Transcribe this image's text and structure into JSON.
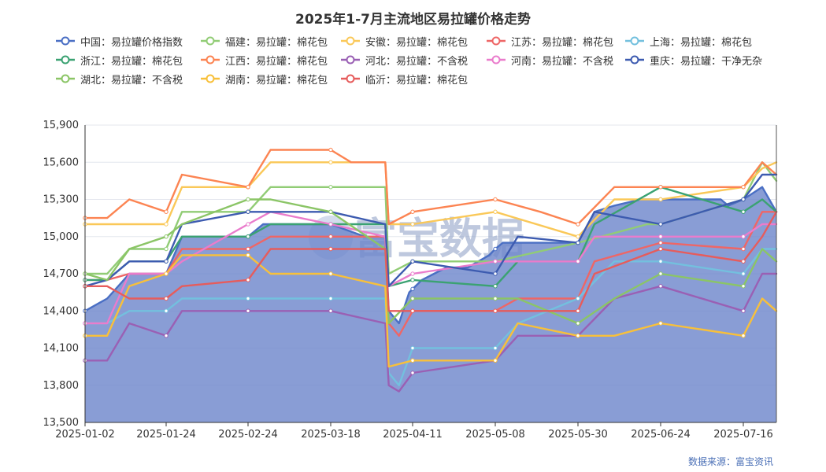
{
  "chart_data": {
    "type": "line",
    "title": "2025年1-7月主流地区易拉罐价格走势",
    "source_note": "数据来源：富宝资讯",
    "watermark": "富宝数据",
    "xlabel": "",
    "ylabel": "",
    "y_axis": {
      "min": 13500,
      "max": 15900,
      "ticks": [
        "13,500",
        "13,800",
        "14,100",
        "14,400",
        "14,700",
        "15,000",
        "15,300",
        "15,600",
        "15,900"
      ]
    },
    "x_axis": {
      "ticks": [
        "2025-01-02",
        "2025-01-24",
        "2025-02-24",
        "2025-03-18",
        "2025-04-11",
        "2025-05-08",
        "2025-05-30",
        "2025-06-24",
        "2025-07-16"
      ]
    },
    "grid": "horizontal",
    "legend_position": "top",
    "series": [
      {
        "name": "中国：易拉罐价格指数",
        "color": "#4a6fc4",
        "area": true,
        "points": [
          [
            "2025-01-02",
            14400
          ],
          [
            "2025-01-08",
            14500
          ],
          [
            "2025-01-14",
            14700
          ],
          [
            "2025-01-24",
            14700
          ],
          [
            "2025-01-30",
            15000
          ],
          [
            "2025-02-24",
            15000
          ],
          [
            "2025-02-28",
            15100
          ],
          [
            "2025-03-18",
            15100
          ],
          [
            "2025-03-28",
            15000
          ],
          [
            "2025-04-03",
            15000
          ],
          [
            "2025-04-04",
            14400
          ],
          [
            "2025-04-07",
            14300
          ],
          [
            "2025-04-10",
            14550
          ],
          [
            "2025-04-14",
            14650
          ],
          [
            "2025-04-18",
            14700
          ],
          [
            "2025-04-22",
            14750
          ],
          [
            "2025-04-29",
            14750
          ],
          [
            "2025-05-06",
            14850
          ],
          [
            "2025-05-08",
            14900
          ],
          [
            "2025-05-10",
            14950
          ],
          [
            "2025-05-30",
            14950
          ],
          [
            "2025-06-04",
            15200
          ],
          [
            "2025-06-10",
            15250
          ],
          [
            "2025-06-18",
            15300
          ],
          [
            "2025-06-24",
            15300
          ],
          [
            "2025-07-10",
            15300
          ],
          [
            "2025-07-12",
            15250
          ],
          [
            "2025-07-16",
            15300
          ],
          [
            "2025-07-20",
            15400
          ],
          [
            "2025-07-23",
            15200
          ]
        ]
      },
      {
        "name": "福建：易拉罐：棉花包",
        "color": "#91cc75",
        "points": [
          [
            "2025-01-02",
            14700
          ],
          [
            "2025-01-08",
            14700
          ],
          [
            "2025-01-14",
            14900
          ],
          [
            "2025-01-24",
            14900
          ],
          [
            "2025-01-30",
            15200
          ],
          [
            "2025-02-24",
            15200
          ],
          [
            "2025-03-02",
            15400
          ],
          [
            "2025-03-18",
            15400
          ],
          [
            "2025-04-03",
            15400
          ],
          [
            "2025-04-04",
            14700
          ],
          [
            "2025-04-11",
            14800
          ],
          [
            "2025-05-08",
            14800
          ],
          [
            "2025-05-30",
            14950
          ],
          [
            "2025-06-20",
            15100
          ],
          [
            "2025-06-24",
            15100
          ],
          [
            "2025-07-16",
            15300
          ],
          [
            "2025-07-20",
            15600
          ],
          [
            "2025-07-23",
            15450
          ]
        ]
      },
      {
        "name": "安徽：易拉罐：棉花包",
        "color": "#fac858",
        "points": [
          [
            "2025-01-02",
            15100
          ],
          [
            "2025-01-24",
            15100
          ],
          [
            "2025-01-30",
            15400
          ],
          [
            "2025-02-24",
            15400
          ],
          [
            "2025-03-02",
            15600
          ],
          [
            "2025-03-18",
            15600
          ],
          [
            "2025-04-03",
            15600
          ],
          [
            "2025-04-04",
            15100
          ],
          [
            "2025-04-11",
            15100
          ],
          [
            "2025-05-08",
            15200
          ],
          [
            "2025-05-30",
            15000
          ],
          [
            "2025-06-10",
            15300
          ],
          [
            "2025-06-24",
            15300
          ],
          [
            "2025-07-16",
            15400
          ],
          [
            "2025-07-20",
            15550
          ],
          [
            "2025-07-23",
            15600
          ]
        ]
      },
      {
        "name": "江苏：易拉罐：棉花包",
        "color": "#ee6666",
        "points": [
          [
            "2025-01-02",
            14650
          ],
          [
            "2025-01-08",
            14650
          ],
          [
            "2025-01-14",
            14700
          ],
          [
            "2025-01-24",
            14700
          ],
          [
            "2025-01-30",
            14900
          ],
          [
            "2025-02-24",
            14900
          ],
          [
            "2025-03-02",
            15000
          ],
          [
            "2025-03-18",
            15000
          ],
          [
            "2025-04-03",
            15000
          ],
          [
            "2025-04-04",
            14300
          ],
          [
            "2025-04-07",
            14200
          ],
          [
            "2025-04-11",
            14400
          ],
          [
            "2025-05-08",
            14400
          ],
          [
            "2025-05-14",
            14500
          ],
          [
            "2025-05-30",
            14500
          ],
          [
            "2025-06-04",
            14800
          ],
          [
            "2025-06-24",
            14950
          ],
          [
            "2025-07-16",
            14900
          ],
          [
            "2025-07-20",
            15200
          ],
          [
            "2025-07-23",
            15200
          ]
        ]
      },
      {
        "name": "上海：易拉罐：棉花包",
        "color": "#73c0de",
        "points": [
          [
            "2025-01-02",
            14300
          ],
          [
            "2025-01-08",
            14300
          ],
          [
            "2025-01-14",
            14400
          ],
          [
            "2025-01-24",
            14400
          ],
          [
            "2025-01-30",
            14500
          ],
          [
            "2025-02-24",
            14500
          ],
          [
            "2025-03-18",
            14500
          ],
          [
            "2025-04-03",
            14500
          ],
          [
            "2025-04-04",
            13900
          ],
          [
            "2025-04-07",
            13800
          ],
          [
            "2025-04-11",
            14100
          ],
          [
            "2025-05-08",
            14100
          ],
          [
            "2025-05-14",
            14300
          ],
          [
            "2025-05-30",
            14500
          ],
          [
            "2025-06-10",
            14800
          ],
          [
            "2025-06-24",
            14800
          ],
          [
            "2025-07-16",
            14700
          ],
          [
            "2025-07-20",
            14900
          ],
          [
            "2025-07-23",
            14900
          ]
        ]
      },
      {
        "name": "浙江：易拉罐：棉花包",
        "color": "#3ba272",
        "points": [
          [
            "2025-01-02",
            14650
          ],
          [
            "2025-01-08",
            14650
          ],
          [
            "2025-01-14",
            14800
          ],
          [
            "2025-01-24",
            14800
          ],
          [
            "2025-01-30",
            15000
          ],
          [
            "2025-02-24",
            15000
          ],
          [
            "2025-03-02",
            15100
          ],
          [
            "2025-03-18",
            15100
          ],
          [
            "2025-04-03",
            15100
          ],
          [
            "2025-04-04",
            14600
          ],
          [
            "2025-04-11",
            14650
          ],
          [
            "2025-05-08",
            14600
          ],
          [
            "2025-05-14",
            14800
          ],
          [
            "2025-05-30",
            14800
          ],
          [
            "2025-06-04",
            15100
          ],
          [
            "2025-06-24",
            15400
          ],
          [
            "2025-07-16",
            15200
          ],
          [
            "2025-07-20",
            15300
          ],
          [
            "2025-07-23",
            15200
          ]
        ]
      },
      {
        "name": "江西：易拉罐：棉花包",
        "color": "#fc8452",
        "points": [
          [
            "2025-01-02",
            15150
          ],
          [
            "2025-01-08",
            15150
          ],
          [
            "2025-01-14",
            15300
          ],
          [
            "2025-01-24",
            15200
          ],
          [
            "2025-01-30",
            15500
          ],
          [
            "2025-02-24",
            15400
          ],
          [
            "2025-03-02",
            15700
          ],
          [
            "2025-03-18",
            15700
          ],
          [
            "2025-03-24",
            15600
          ],
          [
            "2025-04-03",
            15600
          ],
          [
            "2025-04-04",
            15100
          ],
          [
            "2025-04-11",
            15200
          ],
          [
            "2025-05-08",
            15300
          ],
          [
            "2025-05-20",
            15200
          ],
          [
            "2025-05-30",
            15100
          ],
          [
            "2025-06-10",
            15400
          ],
          [
            "2025-06-24",
            15400
          ],
          [
            "2025-07-16",
            15400
          ],
          [
            "2025-07-20",
            15600
          ],
          [
            "2025-07-23",
            15500
          ]
        ]
      },
      {
        "name": "河北：易拉罐：不含税",
        "color": "#9a60b4",
        "points": [
          [
            "2025-01-02",
            14000
          ],
          [
            "2025-01-08",
            14000
          ],
          [
            "2025-01-14",
            14300
          ],
          [
            "2025-01-24",
            14200
          ],
          [
            "2025-01-30",
            14400
          ],
          [
            "2025-02-24",
            14400
          ],
          [
            "2025-03-18",
            14400
          ],
          [
            "2025-04-03",
            14300
          ],
          [
            "2025-04-04",
            13800
          ],
          [
            "2025-04-07",
            13750
          ],
          [
            "2025-04-11",
            13900
          ],
          [
            "2025-05-08",
            14000
          ],
          [
            "2025-05-14",
            14200
          ],
          [
            "2025-05-30",
            14200
          ],
          [
            "2025-06-10",
            14500
          ],
          [
            "2025-06-24",
            14600
          ],
          [
            "2025-07-16",
            14400
          ],
          [
            "2025-07-20",
            14700
          ],
          [
            "2025-07-23",
            14700
          ]
        ]
      },
      {
        "name": "河南：易拉罐：不含税",
        "color": "#ea7ccc",
        "points": [
          [
            "2025-01-02",
            14300
          ],
          [
            "2025-01-08",
            14300
          ],
          [
            "2025-01-14",
            14700
          ],
          [
            "2025-01-24",
            14700
          ],
          [
            "2025-01-30",
            14800
          ],
          [
            "2025-02-24",
            15100
          ],
          [
            "2025-03-02",
            15200
          ],
          [
            "2025-03-18",
            15100
          ],
          [
            "2025-04-03",
            15000
          ],
          [
            "2025-04-04",
            14600
          ],
          [
            "2025-04-11",
            14700
          ],
          [
            "2025-05-08",
            14800
          ],
          [
            "2025-05-30",
            14800
          ],
          [
            "2025-06-04",
            15000
          ],
          [
            "2025-06-24",
            15000
          ],
          [
            "2025-07-16",
            15000
          ],
          [
            "2025-07-20",
            15100
          ],
          [
            "2025-07-23",
            15100
          ]
        ]
      },
      {
        "name": "重庆：易拉罐：干净无杂",
        "color": "#3d5bb0",
        "points": [
          [
            "2025-01-02",
            14600
          ],
          [
            "2025-01-08",
            14650
          ],
          [
            "2025-01-14",
            14800
          ],
          [
            "2025-01-24",
            14800
          ],
          [
            "2025-01-30",
            15100
          ],
          [
            "2025-02-24",
            15200
          ],
          [
            "2025-03-18",
            15200
          ],
          [
            "2025-04-03",
            15100
          ],
          [
            "2025-04-04",
            14600
          ],
          [
            "2025-04-11",
            14800
          ],
          [
            "2025-05-08",
            14700
          ],
          [
            "2025-05-14",
            15000
          ],
          [
            "2025-05-30",
            14950
          ],
          [
            "2025-06-04",
            15200
          ],
          [
            "2025-06-24",
            15100
          ],
          [
            "2025-07-16",
            15300
          ],
          [
            "2025-07-20",
            15500
          ],
          [
            "2025-07-23",
            15500
          ]
        ]
      },
      {
        "name": "湖北：易拉罐：不含税",
        "color": "#8bc566",
        "points": [
          [
            "2025-01-02",
            14700
          ],
          [
            "2025-01-08",
            14650
          ],
          [
            "2025-01-14",
            14900
          ],
          [
            "2025-01-24",
            15000
          ],
          [
            "2025-01-30",
            15100
          ],
          [
            "2025-02-24",
            15300
          ],
          [
            "2025-03-02",
            15300
          ],
          [
            "2025-03-18",
            15200
          ],
          [
            "2025-04-03",
            14900
          ],
          [
            "2025-04-04",
            14300
          ],
          [
            "2025-04-11",
            14500
          ],
          [
            "2025-05-08",
            14500
          ],
          [
            "2025-05-14",
            14500
          ],
          [
            "2025-05-30",
            14300
          ],
          [
            "2025-06-10",
            14500
          ],
          [
            "2025-06-24",
            14700
          ],
          [
            "2025-07-16",
            14600
          ],
          [
            "2025-07-20",
            14900
          ],
          [
            "2025-07-23",
            14800
          ]
        ]
      },
      {
        "name": "湖南：易拉罐：棉花包",
        "color": "#f8c03a",
        "points": [
          [
            "2025-01-02",
            14200
          ],
          [
            "2025-01-08",
            14200
          ],
          [
            "2025-01-14",
            14600
          ],
          [
            "2025-01-24",
            14700
          ],
          [
            "2025-01-30",
            14850
          ],
          [
            "2025-02-24",
            14850
          ],
          [
            "2025-03-02",
            14700
          ],
          [
            "2025-03-18",
            14700
          ],
          [
            "2025-04-03",
            14600
          ],
          [
            "2025-04-04",
            13950
          ],
          [
            "2025-04-11",
            14000
          ],
          [
            "2025-05-08",
            14000
          ],
          [
            "2025-05-14",
            14300
          ],
          [
            "2025-05-30",
            14200
          ],
          [
            "2025-06-10",
            14200
          ],
          [
            "2025-06-24",
            14300
          ],
          [
            "2025-07-16",
            14200
          ],
          [
            "2025-07-20",
            14500
          ],
          [
            "2025-07-23",
            14400
          ]
        ]
      },
      {
        "name": "临沂：易拉罐：棉花包",
        "color": "#e65c5c",
        "points": [
          [
            "2025-01-02",
            14600
          ],
          [
            "2025-01-08",
            14600
          ],
          [
            "2025-01-14",
            14500
          ],
          [
            "2025-01-24",
            14500
          ],
          [
            "2025-01-30",
            14600
          ],
          [
            "2025-02-24",
            14650
          ],
          [
            "2025-03-02",
            14900
          ],
          [
            "2025-03-18",
            14900
          ],
          [
            "2025-04-03",
            14900
          ],
          [
            "2025-04-04",
            14400
          ],
          [
            "2025-04-11",
            14400
          ],
          [
            "2025-05-08",
            14400
          ],
          [
            "2025-05-14",
            14400
          ],
          [
            "2025-05-30",
            14400
          ],
          [
            "2025-06-04",
            14700
          ],
          [
            "2025-06-24",
            14900
          ],
          [
            "2025-07-16",
            14800
          ],
          [
            "2025-07-20",
            15000
          ],
          [
            "2025-07-23",
            15200
          ]
        ]
      }
    ]
  }
}
